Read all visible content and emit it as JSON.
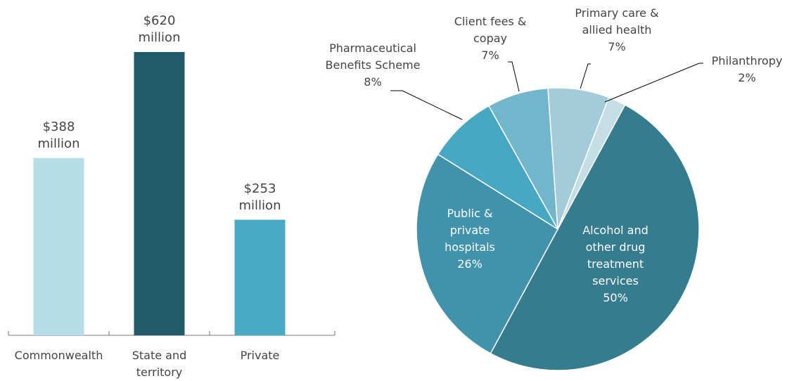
{
  "chart_data": [
    {
      "type": "bar",
      "categories": [
        "Commonwealth",
        "State and territory",
        "Private"
      ],
      "values": [
        388,
        620,
        253
      ],
      "value_labels": [
        "$388 million",
        "$620 million",
        "$253 million"
      ],
      "colors": [
        "#b7dde7",
        "#215a68",
        "#4aa9c5"
      ]
    },
    {
      "type": "pie",
      "categories": [
        "Alcohol and other drug treatment services",
        "Public & private hospitals",
        "Pharmaceutical Benefits Scheme",
        "Client fees & copay",
        "Primary care & allied health",
        "Philanthropy"
      ],
      "values": [
        50,
        26,
        8,
        7,
        7,
        2
      ],
      "value_labels": [
        "50%",
        "26%",
        "8%",
        "7%",
        "7%",
        "2%"
      ],
      "colors": [
        "#357c8f",
        "#4193ad",
        "#48a7c2",
        "#72b6cc",
        "#a3cbd9",
        "#c4dee6"
      ]
    }
  ]
}
